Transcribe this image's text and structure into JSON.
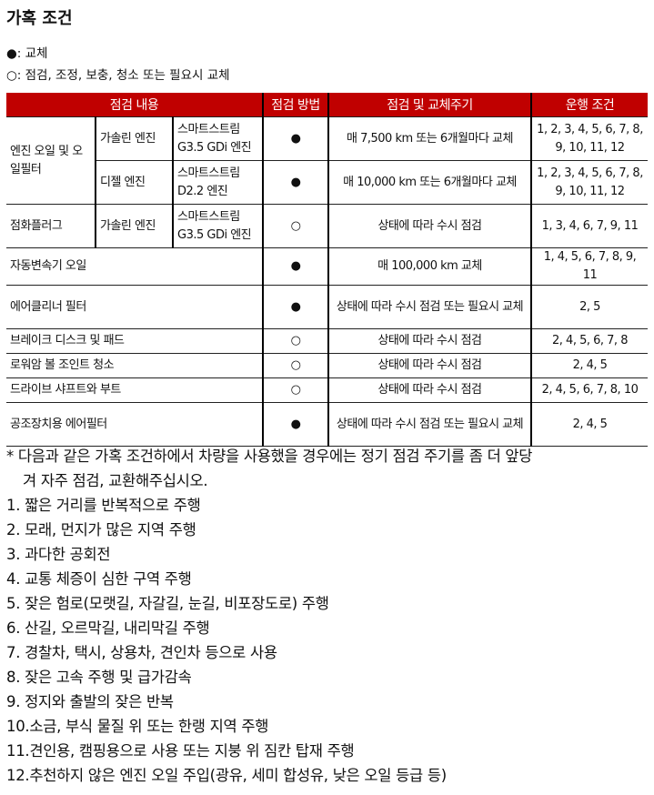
{
  "title": "가혹 조건",
  "legend": {
    "filled": "●: 교체",
    "empty": "○: 점검, 조정, 보충, 청소 또는 필요시 교체"
  },
  "table": {
    "headers": [
      "점검 내용",
      "점검 방법",
      "점검 및 교체주기",
      "운행 조건"
    ],
    "rows": [
      {
        "item": "엔진 오일 및 오일필터",
        "sub": "가솔린 엔진",
        "engine": "스마트스트림 G3.5 GDi 엔진",
        "method": "●",
        "cycle": "매 7,500 km 또는 6개월마다 교체",
        "cond": "1, 2, 3, 4, 5, 6, 7, 8, 9, 10, 11, 12"
      },
      {
        "sub": "디젤 엔진",
        "engine": "스마트스트림 D2.2 엔진",
        "method": "●",
        "cycle": "매 10,000 km 또는 6개월마다 교체",
        "cond": "1, 2, 3, 4, 5, 6, 7, 8, 9, 10, 11, 12"
      },
      {
        "item": "점화플러그",
        "sub": "가솔린 엔진",
        "engine": "스마트스트림 G3.5 GDi 엔진",
        "method": "○",
        "cycle": "상태에 따라 수시 점검",
        "cond": "1, 3, 4, 6, 7, 9, 11"
      },
      {
        "item": "자동변속기 오일",
        "method": "●",
        "cycle": "매 100,000 km 교체",
        "cond": "1, 4, 5, 6, 7, 8, 9, 11"
      },
      {
        "item": "에어클리너 필터",
        "method": "●",
        "cycle": "상태에 따라 수시 점검 또는 필요시 교체",
        "cond": "2, 5"
      },
      {
        "item": "브레이크 디스크 및 패드",
        "method": "○",
        "cycle": "상태에 따라 수시 점검",
        "cond": "2, 4, 5, 6, 7, 8"
      },
      {
        "item": "로워암 볼 조인트 청소",
        "method": "○",
        "cycle": "상태에 따라 수시 점검",
        "cond": "2, 4, 5"
      },
      {
        "item": "드라이브 샤프트와 부트",
        "method": "○",
        "cycle": "상태에 따라 수시 점검",
        "cond": "2, 4, 5, 6, 7, 8, 10"
      },
      {
        "item": "공조장치용 에어필터",
        "method": "●",
        "cycle": "상태에 따라 수시 점검 또는 필요시 교체",
        "cond": "2, 4, 5"
      }
    ]
  },
  "notes": {
    "intro1": "* 다음과 같은 가혹 조건하에서 차량을 사용했을 경우에는 정기 점검 주기를 좀 더 앞당",
    "intro2": "겨 자주 점검, 교환해주십시오.",
    "items": [
      "1. 짧은 거리를 반복적으로 주행",
      "2. 모래, 먼지가 많은 지역 주행",
      "3. 과다한 공회전",
      "4. 교통 체증이 심한 구역 주행",
      "5. 잦은 험로(모랫길, 자갈길, 눈길, 비포장도로) 주행",
      "6. 산길, 오르막길, 내리막길 주행",
      "7. 경찰차, 택시, 상용차, 견인차 등으로 사용",
      "8. 잦은 고속 주행 및 급가감속",
      "9. 정지와 출발의 잦은 반복",
      "10.소금, 부식 물질 위 또는 한랭 지역 주행",
      "11.견인용, 캠핑용으로 사용 또는 지붕 위 짐칸 탑재 주행",
      "12.추천하지 않은 엔진 오일 주입(광유, 세미 합성유, 낮은 오일 등급 등)"
    ]
  },
  "colors": {
    "header": "#c00000"
  }
}
